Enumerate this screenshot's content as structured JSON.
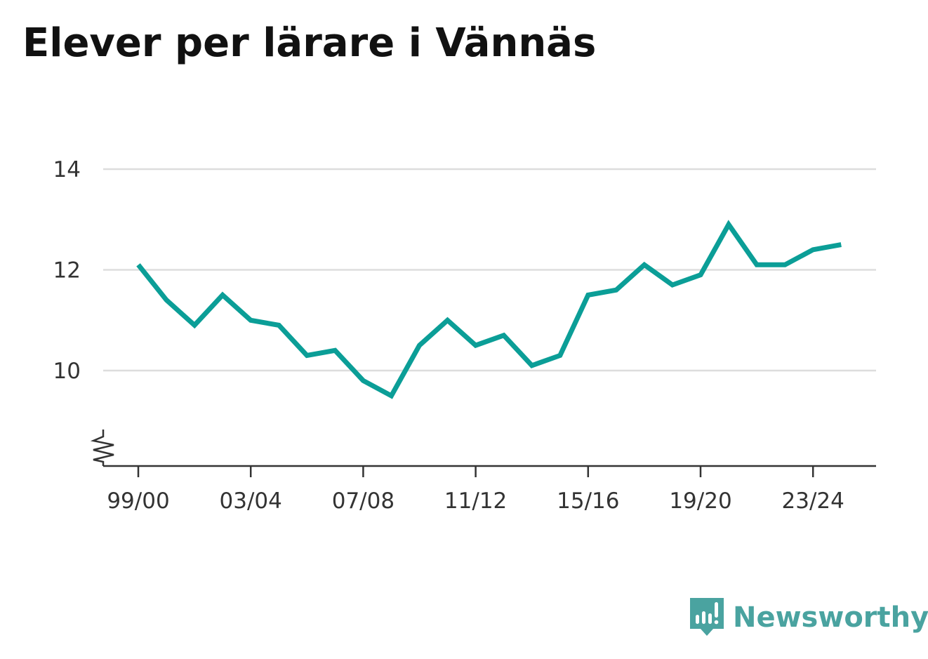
{
  "title": "Elever per lärare i Vännäs",
  "brand": {
    "name": "Newsworthy",
    "icon": "newsworthy-logo-icon",
    "color": "#4aa3a0"
  },
  "colors": {
    "line": "#0b9e97",
    "grid": "#dddddd",
    "axis": "#333333",
    "text": "#333333"
  },
  "chart_data": {
    "type": "line",
    "title": "Elever per lärare i Vännäs",
    "xlabel": "",
    "ylabel": "",
    "x": [
      "99/00",
      "00/01",
      "01/02",
      "02/03",
      "03/04",
      "04/05",
      "05/06",
      "06/07",
      "07/08",
      "08/09",
      "09/10",
      "10/11",
      "11/12",
      "12/13",
      "13/14",
      "14/15",
      "15/16",
      "16/17",
      "17/18",
      "18/19",
      "19/20",
      "20/21",
      "21/22",
      "22/23",
      "23/24",
      "24/25"
    ],
    "series": [
      {
        "values": [
          12.1,
          11.4,
          10.9,
          11.5,
          11.0,
          10.9,
          10.3,
          10.4,
          9.8,
          9.5,
          10.5,
          11.0,
          10.5,
          10.7,
          10.1,
          10.3,
          11.5,
          11.6,
          12.1,
          11.7,
          11.9,
          12.9,
          12.1,
          12.1,
          12.4,
          12.5
        ]
      }
    ],
    "x_tick_labels": [
      "99/00",
      "03/04",
      "07/08",
      "11/12",
      "15/16",
      "19/20",
      "23/24"
    ],
    "y_ticks": [
      10,
      12,
      14
    ],
    "ylim": [
      8.15,
      14
    ],
    "y_axis_break": true,
    "grid": true,
    "legend": "none"
  }
}
